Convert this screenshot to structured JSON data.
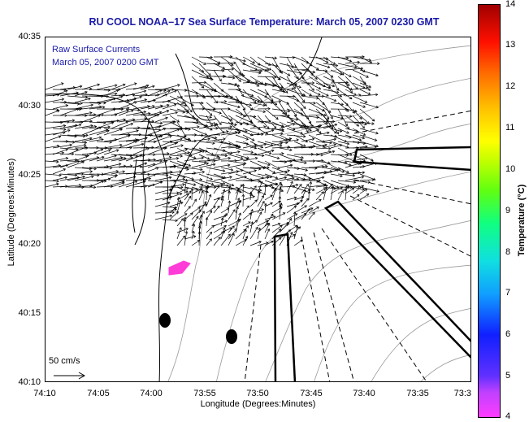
{
  "title": "RU COOL  NOAA–17  Sea Surface Temperature:  March 05, 2007 0230 GMT",
  "legend": {
    "line1": "Raw Surface Currents",
    "line2": "March 05, 2007 0200 GMT"
  },
  "scale_arrow_label": "50 cm/s",
  "axes": {
    "xlabel": "Longitude (Degrees:Minutes)",
    "ylabel": "Latitude (Degrees:Minutes)",
    "xticks": [
      "74:10",
      "74:05",
      "74:00",
      "73:55",
      "73:50",
      "73:45",
      "73:40",
      "73:35",
      "73:3"
    ],
    "yticks": [
      "40:35",
      "40:30",
      "40:25",
      "40:20",
      "40:15",
      "40:10"
    ]
  },
  "colorbar": {
    "label": "Temperature (°C)",
    "ticks": [
      "14",
      "13",
      "12",
      "11",
      "10",
      "9",
      "8",
      "7",
      "6",
      "5",
      "4"
    ],
    "colors": {
      "low": "#ff3cff",
      "high": "#a00000"
    }
  },
  "features": {
    "sst_patch_color": "#ff3cd8",
    "land_mask_color": "#000000"
  }
}
